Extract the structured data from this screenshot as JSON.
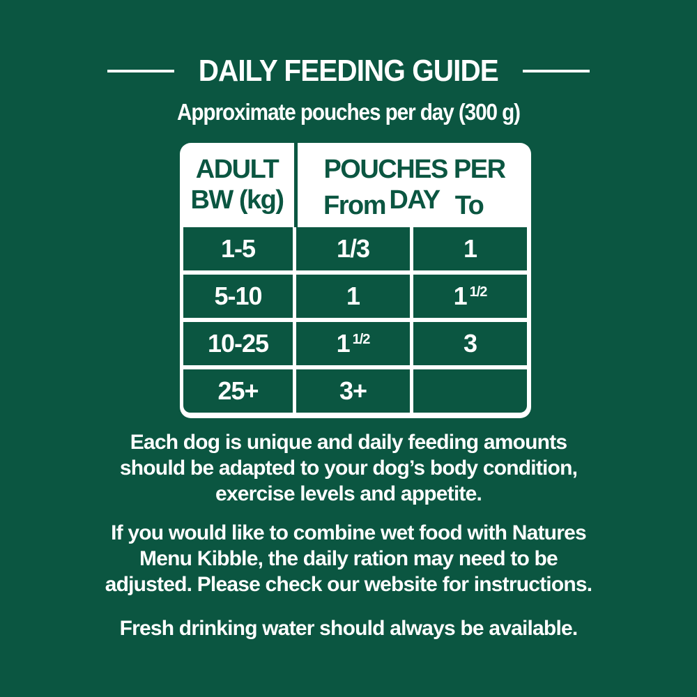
{
  "title": "DAILY FEEDING GUIDE",
  "subtitle": "Approximate pouches per day (300 g)",
  "colors": {
    "background": "#0b5641",
    "table_bg": "#ffffff",
    "text": "#ffffff"
  },
  "table": {
    "header": {
      "col1_line1": "ADULT",
      "col1_line2": "BW (kg)",
      "group": "POUCHES PER DAY",
      "from": "From",
      "to": "To"
    },
    "rows": [
      {
        "bw": "1-5",
        "from": "1/3",
        "to": "1"
      },
      {
        "bw": "5-10",
        "from": "1",
        "to_whole": "1",
        "to_frac": "1/2"
      },
      {
        "bw": "10-25",
        "from_whole": "1",
        "from_frac": "1/2",
        "to": "3"
      },
      {
        "bw": "25+",
        "from": "3+",
        "to": ""
      }
    ]
  },
  "notes": {
    "p1": [
      "Each dog is unique and daily feeding amounts",
      "should be adapted to your dog’s body condition,",
      "exercise levels and appetite."
    ],
    "p2": [
      "If you would like to combine wet food with Natures",
      "Menu Kibble, the daily ration may need to be",
      "adjusted. Please check our website for instructions."
    ],
    "p3": "Fresh drinking water should always be available."
  }
}
